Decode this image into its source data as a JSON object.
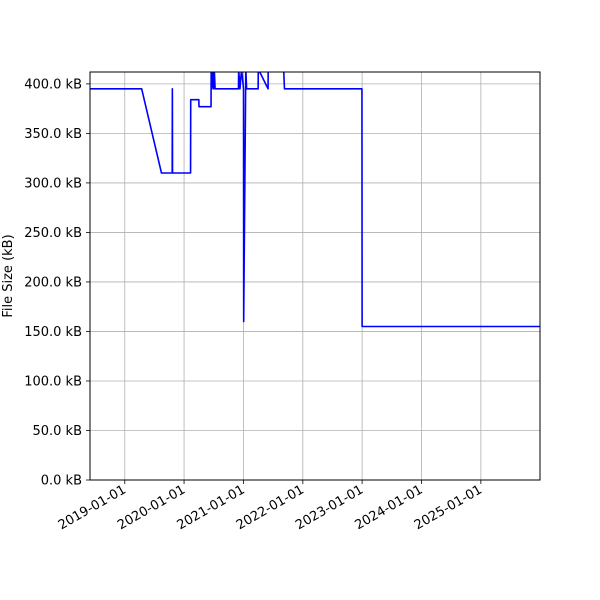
{
  "chart_data": {
    "type": "line",
    "title": "",
    "xlabel": "",
    "ylabel": "File Size (kB)",
    "grid": true,
    "legend": "none",
    "line_color": "#0000ff",
    "xlim": [
      "2018-06-01",
      "2025-12-31"
    ],
    "ylim": [
      0,
      412
    ],
    "x_ticks": [
      "2019-01-01",
      "2020-01-01",
      "2021-01-01",
      "2022-01-01",
      "2023-01-01",
      "2024-01-01",
      "2025-01-01"
    ],
    "y_ticks": [
      {
        "value": 0,
        "label": "0.0 kB"
      },
      {
        "value": 50,
        "label": "50.0 kB"
      },
      {
        "value": 100,
        "label": "100.0 kB"
      },
      {
        "value": 150,
        "label": "150.0 kB"
      },
      {
        "value": 200,
        "label": "200.0 kB"
      },
      {
        "value": 250,
        "label": "250.0 kB"
      },
      {
        "value": 300,
        "label": "300.0 kB"
      },
      {
        "value": 350,
        "label": "350.0 kB"
      },
      {
        "value": 400,
        "label": "400.0 kB"
      }
    ],
    "series": [
      {
        "x": [
          "2018-06-01",
          "2019-04-15",
          "2019-08-15",
          "2019-10-20",
          "2019-10-21",
          "2019-10-22",
          "2020-02-10",
          "2020-02-11",
          "2020-04-01",
          "2020-04-02",
          "2020-06-15",
          "2020-06-16",
          "2020-06-20",
          "2020-06-25",
          "2020-07-01",
          "2020-07-05",
          "2020-07-10",
          "2020-12-01",
          "2020-12-02",
          "2020-12-10",
          "2020-12-20",
          "2021-01-01",
          "2021-01-02",
          "2021-01-15",
          "2021-01-20",
          "2021-04-01",
          "2021-04-02",
          "2021-06-01",
          "2021-06-02",
          "2021-09-05",
          "2021-09-10",
          "2021-09-15",
          "2022-12-31",
          "2023-01-01",
          "2025-12-31"
        ],
        "y": [
          395,
          395,
          310,
          310,
          395,
          310,
          310,
          384,
          384,
          377,
          377,
          415,
          395,
          415,
          395,
          415,
          395,
          395,
          415,
          395,
          415,
          395,
          160,
          415,
          395,
          395,
          415,
          395,
          415,
          415,
          395,
          395,
          395,
          155,
          155
        ]
      }
    ]
  }
}
